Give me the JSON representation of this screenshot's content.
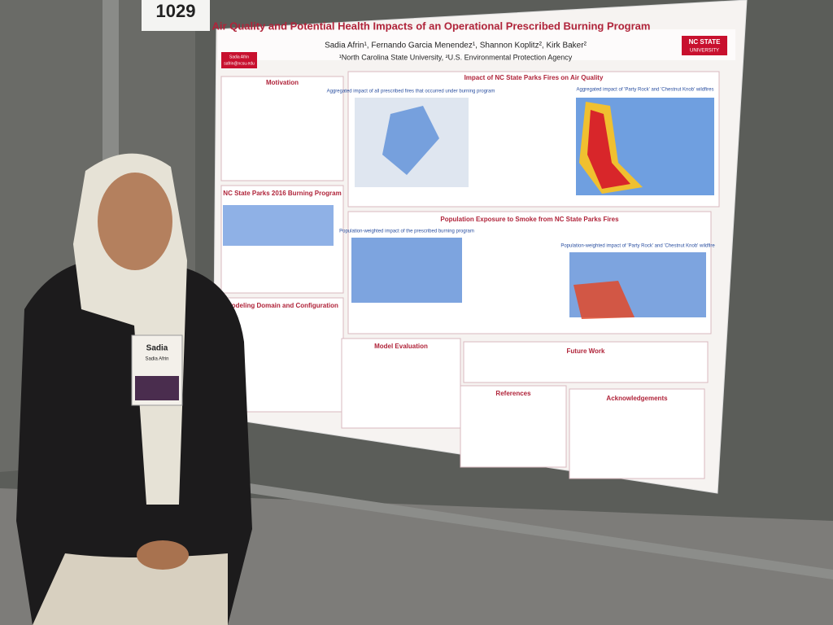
{
  "sign": "1029",
  "poster": {
    "title": "Air Quality and Potential Health Impacts of an Operational Prescribed Burning Program",
    "authors": "Sadia Afrin¹, Fernando Garcia Menendez¹, Shannon Koplitz², Kirk Baker²",
    "affiliation": "¹North Carolina State University, ²U.S. Environmental Protection Agency",
    "logo": [
      "NC STATE",
      "UNIVERSITY"
    ],
    "author_box": [
      "Sadia Afrin",
      "safrin@ncsu.edu"
    ],
    "sections": {
      "motivation": "Motivation",
      "impact": "Impact of NC State Parks Fires on Air Quality",
      "burning": "NC State Parks 2016 Burning Program",
      "exposure": "Population Exposure to Smoke from NC State Parks Fires",
      "modeling": "Modeling Domain and Configuration",
      "evaluation": "Model Evaluation",
      "future": "Future Work",
      "references": "References",
      "acknowledgements": "Acknowledgements"
    },
    "map_titles": {
      "aggregated": "Aggregated impact of all prescribed fires that occurred under burning program",
      "party_rock": "Aggregated impact of 'Party Rock' and 'Chestnut Knob' wildfires",
      "pop_prescribed": "Population-weighted impact of the prescribed burning program",
      "pop_party_rock": "Population-weighted impact of 'Party Rock' and 'Chestnut Knob' wildfire"
    }
  },
  "badge": {
    "name": "Sadia",
    "full_name": "Sadia Afrin"
  }
}
